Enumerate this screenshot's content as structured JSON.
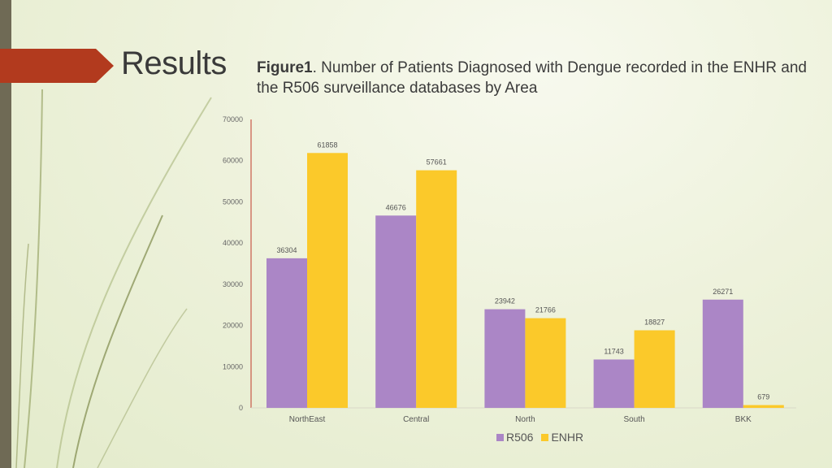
{
  "slide": {
    "heading": "Results",
    "figure_label": "Figure1",
    "figure_text": ". Number of Patients Diagnosed with Dengue recorded in the ENHR and the R506 surveillance databases by Area"
  },
  "colors": {
    "r506": "#ab86c6",
    "enhr": "#fbc92a",
    "accent": "#b23a1e",
    "axis": "#c0392b"
  },
  "chart_data": {
    "type": "bar",
    "title": "Number of Patients Diagnosed with Dengue recorded in the ENHR and the R506 surveillance databases by Area",
    "categories": [
      "NorthEast",
      "Central",
      "North",
      "South",
      "BKK"
    ],
    "series": [
      {
        "name": "R506",
        "values": [
          36304,
          46676,
          23942,
          11743,
          26271
        ]
      },
      {
        "name": "ENHR",
        "values": [
          61858,
          57661,
          21766,
          18827,
          679
        ]
      }
    ],
    "yticks": [
      "0",
      "10000",
      "20000",
      "30000",
      "40000",
      "50000",
      "60000",
      "70000"
    ],
    "ylim": [
      0,
      70000
    ],
    "xlabel": "",
    "ylabel": "",
    "legend_position": "bottom"
  }
}
